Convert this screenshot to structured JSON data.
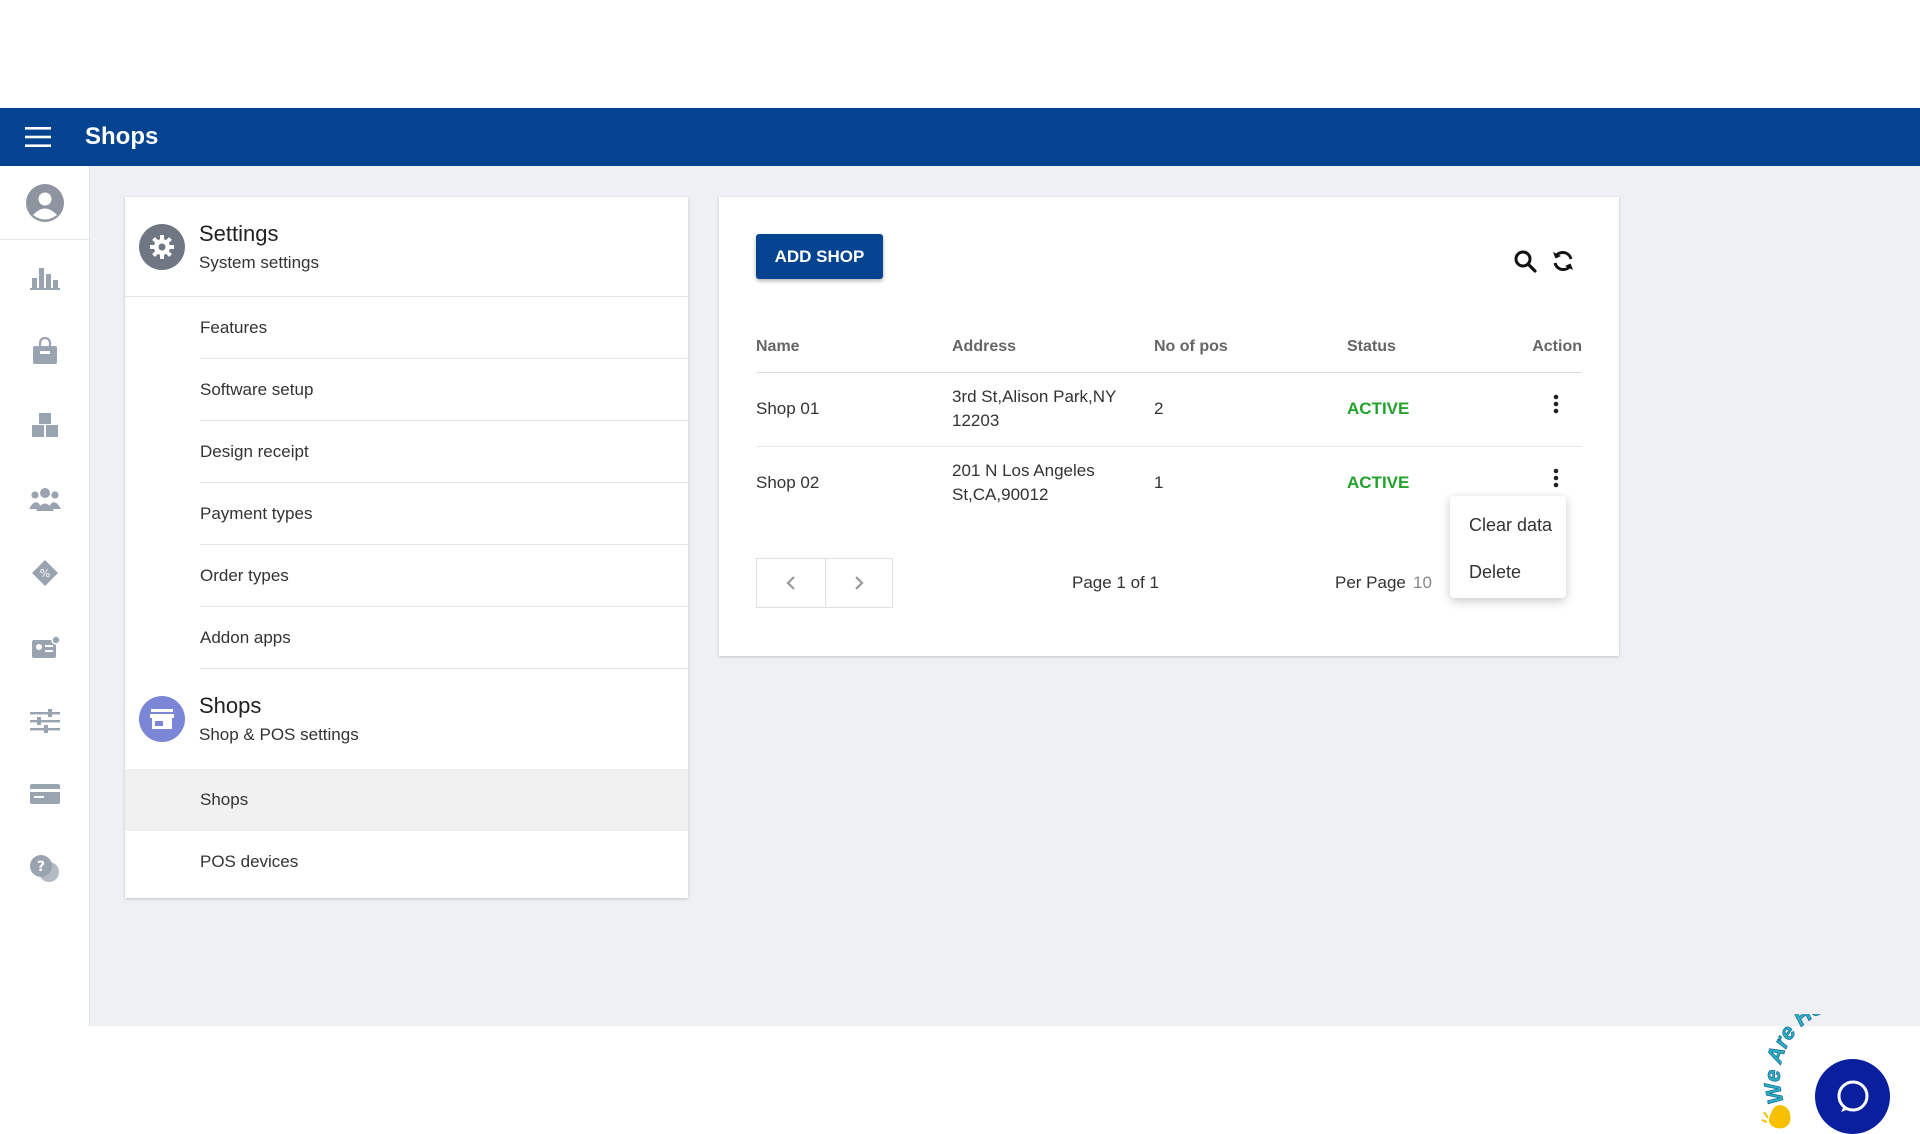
{
  "header": {
    "title": "Shops"
  },
  "rail": {
    "icons": [
      "profile-icon",
      "reports-icon",
      "items-icon",
      "inventory-icon",
      "customers-icon",
      "discounts-icon",
      "employees-icon",
      "settings-sliders-icon",
      "billing-icon",
      "help-icon"
    ]
  },
  "settings_menu": {
    "system_group": {
      "title": "Settings",
      "subtitle": "System settings"
    },
    "system_items": [
      "Features",
      "Software setup",
      "Design receipt",
      "Payment types",
      "Order types",
      "Addon apps"
    ],
    "shops_group": {
      "title": "Shops",
      "subtitle": "Shop & POS settings"
    },
    "shops_items": [
      "Shops",
      "POS devices"
    ],
    "active_item": "Shops"
  },
  "shops_panel": {
    "add_button": "ADD SHOP",
    "columns": [
      "Name",
      "Address",
      "No of pos",
      "Status",
      "Action"
    ],
    "rows": [
      {
        "name": "Shop 01",
        "address_line1": "3rd St,Alison Park,NY",
        "address_line2": "12203",
        "pos": "2",
        "status": "ACTIVE"
      },
      {
        "name": "Shop 02",
        "address_line1": "201 N Los Angeles",
        "address_line2": "St,CA,90012",
        "pos": "1",
        "status": "ACTIVE"
      }
    ],
    "page_info": "Page 1 of 1",
    "per_page_label": "Per Page",
    "per_page_value": "10",
    "action_menu": [
      "Clear data",
      "Delete"
    ]
  },
  "chat_widget": {
    "text": "We Are Here!"
  },
  "colors": {
    "primary": "#03438f",
    "active": "#22a32a",
    "chat": "#0a1f9e",
    "settings_avatar": "#6e7782",
    "shops_avatar": "#7b86d6"
  }
}
